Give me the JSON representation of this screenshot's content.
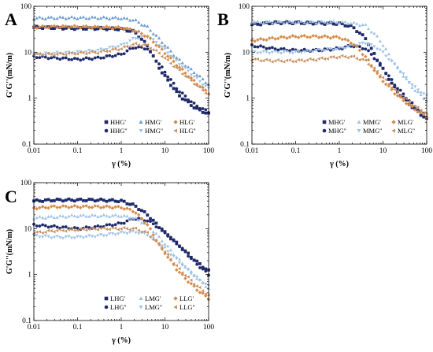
{
  "colors": {
    "navy": "#1f2a6b",
    "light_blue": "#9ec3e6",
    "steel_blue": "#6a9bd1",
    "orange": "#d98c4a",
    "tan": "#c99060"
  },
  "chart_data": [
    {
      "panel": "A",
      "type": "scatter",
      "xscale": "log",
      "yscale": "log",
      "xlim": [
        0.01,
        100
      ],
      "ylim": [
        0.1,
        100
      ],
      "xticks": [
        "0.01",
        "0.1",
        "1",
        "10",
        "100"
      ],
      "yticks": [
        "0.1",
        "1",
        "10",
        "100"
      ],
      "xlabel": "γ (%)",
      "ylabel": "G'G''(mN/m)",
      "legend_position": "bottom-right",
      "series": [
        {
          "name": "HHG'",
          "marker": "square",
          "color": "navy",
          "x": [
            0.01,
            0.03,
            0.1,
            0.3,
            1,
            2,
            4,
            8,
            20,
            50,
            100
          ],
          "y": [
            35,
            34,
            33,
            33,
            32,
            28,
            14,
            4,
            1.2,
            0.6,
            0.45
          ]
        },
        {
          "name": "HHG''",
          "marker": "circle",
          "color": "navy",
          "x": [
            0.01,
            0.03,
            0.1,
            0.3,
            1,
            2,
            4,
            8,
            20,
            50,
            100
          ],
          "y": [
            8,
            7.5,
            7,
            7.5,
            9,
            13,
            12,
            5,
            1.5,
            0.7,
            0.5
          ]
        },
        {
          "name": "HMG'",
          "marker": "triangle-up",
          "color": "steel_blue",
          "x": [
            0.01,
            0.03,
            0.1,
            0.3,
            1,
            2,
            4,
            8,
            20,
            50,
            100
          ],
          "y": [
            55,
            56,
            56,
            56,
            55,
            50,
            35,
            18,
            7,
            3.5,
            2
          ]
        },
        {
          "name": "HMG''",
          "marker": "triangle-down",
          "color": "light_blue",
          "x": [
            0.01,
            0.03,
            0.1,
            0.3,
            1,
            2,
            4,
            8,
            20,
            50,
            100
          ],
          "y": [
            9,
            9.5,
            10,
            11,
            14,
            20,
            22,
            14,
            6,
            2.8,
            1.6
          ]
        },
        {
          "name": "HLG'",
          "marker": "diamond",
          "color": "orange",
          "x": [
            0.01,
            0.03,
            0.1,
            0.3,
            1,
            2,
            4,
            8,
            20,
            50,
            100
          ],
          "y": [
            35,
            36,
            36,
            35,
            34,
            30,
            22,
            12,
            5,
            2.2,
            1.3
          ]
        },
        {
          "name": "HLG''",
          "marker": "triangle-left",
          "color": "tan",
          "x": [
            0.01,
            0.03,
            0.1,
            0.3,
            1,
            2,
            4,
            8,
            20,
            50,
            100
          ],
          "y": [
            9,
            9,
            9.5,
            10,
            12,
            15,
            14,
            9,
            4.2,
            2,
            1.2
          ]
        }
      ]
    },
    {
      "panel": "B",
      "type": "scatter",
      "xscale": "log",
      "yscale": "log",
      "xlim": [
        0.01,
        100
      ],
      "ylim": [
        0.1,
        100
      ],
      "xticks": [
        "0.01",
        "0.1",
        "1",
        "10",
        "100"
      ],
      "yticks": [
        "0.1",
        "1",
        "10",
        "100"
      ],
      "xlabel": "γ (%)",
      "ylabel": "G'G''(mN/m)",
      "legend_position": "bottom-right",
      "series": [
        {
          "name": "MHG'",
          "marker": "square",
          "color": "navy",
          "x": [
            0.01,
            0.03,
            0.1,
            0.3,
            1,
            2,
            4,
            8,
            20,
            50,
            100
          ],
          "y": [
            40,
            44,
            44,
            43,
            42,
            36,
            20,
            6,
            1.5,
            0.6,
            0.35
          ]
        },
        {
          "name": "MHG''",
          "marker": "circle",
          "color": "navy",
          "x": [
            0.01,
            0.03,
            0.1,
            0.3,
            1,
            2,
            4,
            8,
            20,
            50,
            100
          ],
          "y": [
            14,
            12,
            11,
            11,
            12,
            14,
            12,
            6,
            1.8,
            0.7,
            0.4
          ]
        },
        {
          "name": "MMG'",
          "marker": "triangle-up",
          "color": "light_blue",
          "x": [
            0.01,
            0.03,
            0.1,
            0.3,
            1,
            2,
            4,
            8,
            20,
            50,
            100
          ],
          "y": [
            45,
            45,
            45,
            45,
            45,
            43,
            38,
            20,
            5,
            1.6,
            0.9
          ]
        },
        {
          "name": "MMG''",
          "marker": "triangle-down",
          "color": "light_blue",
          "x": [
            0.01,
            0.03,
            0.1,
            0.3,
            1,
            2,
            4,
            8,
            20,
            50,
            100
          ],
          "y": [
            10,
            10,
            10,
            11,
            12,
            14,
            16,
            12,
            5,
            1.8,
            1.1
          ]
        },
        {
          "name": "MLG'",
          "marker": "diamond",
          "color": "orange",
          "x": [
            0.01,
            0.03,
            0.1,
            0.3,
            1,
            2,
            4,
            8,
            20,
            50,
            100
          ],
          "y": [
            18,
            20,
            22,
            22,
            21,
            16,
            8,
            3,
            1.2,
            0.6,
            0.4
          ]
        },
        {
          "name": "MLG''",
          "marker": "triangle-left",
          "color": "tan",
          "x": [
            0.01,
            0.03,
            0.1,
            0.3,
            1,
            2,
            4,
            8,
            20,
            50,
            100
          ],
          "y": [
            7,
            6.5,
            6.5,
            7,
            8,
            8,
            6.5,
            3.5,
            1.4,
            0.7,
            0.45
          ]
        }
      ]
    },
    {
      "panel": "C",
      "type": "scatter",
      "xscale": "log",
      "yscale": "log",
      "xlim": [
        0.01,
        100
      ],
      "ylim": [
        0.1,
        100
      ],
      "xticks": [
        "0.01",
        "0.1",
        "1",
        "10",
        "100"
      ],
      "yticks": [
        "0.1",
        "1",
        "10",
        "100"
      ],
      "xlabel": "γ (%)",
      "ylabel": "G'G''(mN/m)",
      "legend_position": "bottom-right",
      "series": [
        {
          "name": "LHG'",
          "marker": "square",
          "color": "navy",
          "x": [
            0.01,
            0.03,
            0.1,
            0.3,
            1,
            2,
            4,
            8,
            20,
            50,
            100
          ],
          "y": [
            40,
            42,
            42,
            42,
            40,
            32,
            20,
            10,
            4.5,
            2,
            1.2
          ]
        },
        {
          "name": "LHG''",
          "marker": "circle",
          "color": "navy",
          "x": [
            0.01,
            0.03,
            0.1,
            0.3,
            1,
            2,
            4,
            8,
            20,
            50,
            100
          ],
          "y": [
            12,
            11,
            10,
            11,
            13,
            17,
            15,
            10,
            4.5,
            1.8,
            1
          ]
        },
        {
          "name": "LMG'",
          "marker": "triangle-up",
          "color": "light_blue",
          "x": [
            0.01,
            0.03,
            0.1,
            0.3,
            1,
            2,
            4,
            8,
            20,
            50,
            100
          ],
          "y": [
            17,
            18,
            19,
            19,
            19,
            17,
            12,
            6,
            2.2,
            0.9,
            0.5
          ]
        },
        {
          "name": "LMG''",
          "marker": "triangle-down",
          "color": "light_blue",
          "x": [
            0.01,
            0.03,
            0.1,
            0.3,
            1,
            2,
            4,
            8,
            20,
            50,
            100
          ],
          "y": [
            7,
            6.5,
            6.5,
            7,
            8,
            8.5,
            7.5,
            4.5,
            2,
            0.9,
            0.55
          ]
        },
        {
          "name": "LLG'",
          "marker": "diamond",
          "color": "orange",
          "x": [
            0.01,
            0.03,
            0.1,
            0.3,
            1,
            2,
            4,
            8,
            20,
            50,
            100
          ],
          "y": [
            28,
            30,
            30,
            30,
            29,
            24,
            12,
            4,
            1.2,
            0.5,
            0.3
          ]
        },
        {
          "name": "LLG''",
          "marker": "triangle-left",
          "color": "tan",
          "x": [
            0.01,
            0.03,
            0.1,
            0.3,
            1,
            2,
            4,
            8,
            20,
            50,
            100
          ],
          "y": [
            8,
            9,
            9.5,
            10,
            10,
            10,
            8,
            4,
            1.4,
            0.6,
            0.35
          ]
        }
      ]
    }
  ]
}
